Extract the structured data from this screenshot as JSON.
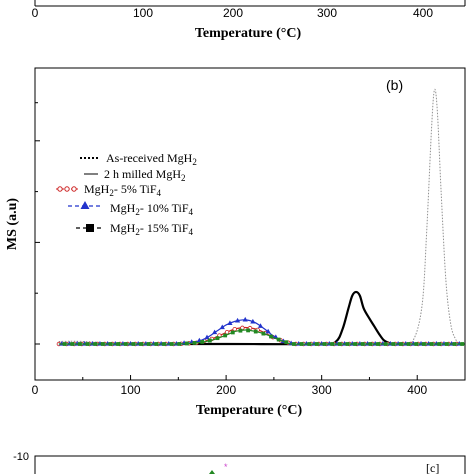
{
  "top_strip": {
    "tick_labels": [
      "0",
      "100",
      "200",
      "300",
      "400"
    ],
    "xlabel": "Temperature (°C)"
  },
  "bottom_strip": {
    "ytick_label": "-10",
    "panel_label": "[c]"
  },
  "chart_data": {
    "type": "line",
    "panel_label": "(b)",
    "xlabel": "Temperature (°C)",
    "ylabel": "MS (a.u)",
    "xlim": [
      0,
      450
    ],
    "ylim": [
      -0.08,
      1.0
    ],
    "xticks": [
      0,
      100,
      200,
      300,
      400
    ],
    "x_tick_labels": [
      "0",
      "100",
      "200",
      "300",
      "400"
    ],
    "grid": false,
    "legend_position": "center-left",
    "series": [
      {
        "name": "As-received MgH2",
        "style": "dotted",
        "color": "#909090",
        "x": [
          25,
          50,
          100,
          150,
          200,
          250,
          300,
          350,
          380,
          395,
          405,
          410,
          415,
          418,
          421,
          425,
          430,
          435,
          440,
          445,
          450
        ],
        "y": [
          0.01,
          0.01,
          0.0,
          0.0,
          0.0,
          0.0,
          0.0,
          0.0,
          0.0,
          0.01,
          0.15,
          0.45,
          0.85,
          1.0,
          0.92,
          0.6,
          0.25,
          0.08,
          0.02,
          0.0,
          0.0
        ]
      },
      {
        "name": "2 h milled MgH2",
        "style": "solid",
        "color": "#000000",
        "x": [
          25,
          100,
          200,
          300,
          315,
          322,
          328,
          332,
          336,
          340,
          344,
          350,
          355,
          360,
          365,
          370,
          380,
          450
        ],
        "y": [
          0.0,
          0.0,
          0.0,
          0.0,
          0.01,
          0.06,
          0.14,
          0.19,
          0.205,
          0.19,
          0.14,
          0.1,
          0.07,
          0.04,
          0.015,
          0.005,
          0.0,
          0.0
        ]
      },
      {
        "name": "MgH2- 5% TiF4",
        "style": "open-circle",
        "color": "#cc2222",
        "x": [
          25,
          50,
          100,
          150,
          170,
          185,
          200,
          210,
          220,
          230,
          240,
          250,
          260,
          270,
          300,
          350,
          400,
          450
        ],
        "y": [
          0.0,
          0.0,
          0.0,
          0.0,
          0.005,
          0.02,
          0.045,
          0.06,
          0.065,
          0.06,
          0.045,
          0.025,
          0.01,
          0.0,
          0.0,
          0.0,
          0.0,
          0.0
        ]
      },
      {
        "name": "MgH2- 10% TiF4",
        "style": "triangle",
        "color": "#2233cc",
        "x": [
          25,
          50,
          100,
          150,
          170,
          180,
          190,
          200,
          210,
          220,
          230,
          240,
          250,
          260,
          270,
          300,
          350,
          400,
          450
        ],
        "y": [
          0.0,
          0.0,
          0.0,
          0.0,
          0.01,
          0.025,
          0.05,
          0.075,
          0.09,
          0.095,
          0.085,
          0.06,
          0.03,
          0.01,
          0.0,
          0.0,
          0.0,
          0.0,
          0.0
        ]
      },
      {
        "name": "MgH2- 15% TiF4",
        "style": "square",
        "color": "#228822",
        "x": [
          25,
          50,
          100,
          150,
          170,
          185,
          200,
          210,
          220,
          230,
          240,
          250,
          260,
          270,
          300,
          350,
          400,
          450
        ],
        "y": [
          0.0,
          0.0,
          0.0,
          0.0,
          0.005,
          0.015,
          0.035,
          0.05,
          0.055,
          0.05,
          0.04,
          0.025,
          0.01,
          0.0,
          0.0,
          0.0,
          0.0,
          0.0
        ]
      }
    ]
  }
}
